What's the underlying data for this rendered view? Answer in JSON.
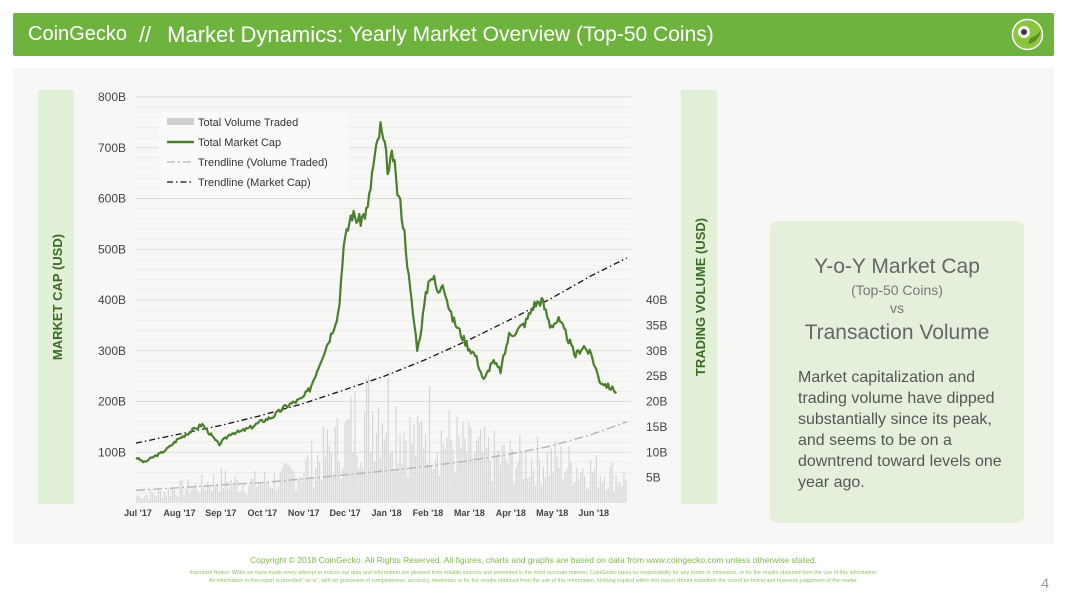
{
  "header": {
    "brand": "CoinGecko",
    "separator": "//",
    "title_strong": "Market Dynamics:",
    "title_light": "Yearly Market Overview (Top-50 Coins)",
    "logo_icon": "gecko-logo-icon"
  },
  "colors": {
    "brand_green": "#6fb33f",
    "market_cap_line": "#4a7f2c",
    "volume_bars": "#d6d6d6",
    "axis_band": "#e3f0d8",
    "axis_text": "#3a6b23"
  },
  "side_box": {
    "heading1": "Y-o-Y Market Cap",
    "subheading": "(Top-50 Coins)",
    "vs": "vs",
    "heading2": "Transaction Volume",
    "body": "Market capitalization and trading volume have dipped substantially since its peak, and seems to be on a downtrend toward levels one year ago."
  },
  "footer": {
    "copyright": "Copyright © 2018 CoinGecko. All Rights Reserved. All figures, charts and graphs are based on data from www.coingecko.com unless otherwise stated.",
    "note1": "Important Notice: While we have made every attempt to ensure our data and information are gleaned from reliable sources and presented in the most accurate manner, CoinGecko takes no responsibility for any errors or omissions, or for the results obtained from the use of this information.",
    "note2": "All information in this report is provided \"as is\", with no guarantee of completeness, accuracy, timeliness or for the results obtained from the use of this information. Nothing implied within this report should substitute the sound technical and business judgement of the reader.",
    "page_number": "4"
  },
  "chart_data": {
    "type": "line",
    "ylabel": "MARKET CAP (USD)",
    "ylabel_right": "TRADING VOLUME (USD)",
    "ylim": [
      0,
      800
    ],
    "ylim_right": [
      0,
      80
    ],
    "y_ticks": [
      {
        "value": 100,
        "label": "100B"
      },
      {
        "value": 200,
        "label": "200B"
      },
      {
        "value": 300,
        "label": "300B"
      },
      {
        "value": 400,
        "label": "400B"
      },
      {
        "value": 500,
        "label": "500B"
      },
      {
        "value": 600,
        "label": "600B"
      },
      {
        "value": 700,
        "label": "700B"
      },
      {
        "value": 800,
        "label": "800B"
      }
    ],
    "y_right_ticks": [
      {
        "value": 5,
        "label": "5B"
      },
      {
        "value": 10,
        "label": "10B"
      },
      {
        "value": 15,
        "label": "15B"
      },
      {
        "value": 20,
        "label": "20B"
      },
      {
        "value": 25,
        "label": "25B"
      },
      {
        "value": 30,
        "label": "30B"
      },
      {
        "value": 35,
        "label": "35B"
      },
      {
        "value": 40,
        "label": "40B"
      }
    ],
    "x_labels": [
      "Jul '17",
      "Aug '17",
      "Sep '17",
      "Oct '17",
      "Nov '17",
      "Dec '17",
      "Jan '18",
      "Feb '18",
      "Mar '18",
      "Apr '18",
      "May '18",
      "Jun '18"
    ],
    "legend_position": "top-left",
    "legend": [
      {
        "label": "Total Volume Traded",
        "style": "bar"
      },
      {
        "label": "Total Market Cap",
        "style": "line"
      },
      {
        "label": "Trendline (Volume Traded)",
        "style": "dash-dot-gray"
      },
      {
        "label": "Trendline (Market Cap)",
        "style": "dash-dot-black"
      }
    ],
    "market_cap_series": {
      "name": "Total Market Cap",
      "x_month_index": [
        0,
        0.2,
        0.4,
        0.6,
        0.8,
        1.0,
        1.3,
        1.6,
        2.0,
        2.3,
        2.5,
        2.8,
        3.0,
        3.3,
        3.6,
        3.8,
        4.0,
        4.2,
        4.5,
        4.7,
        4.9,
        5.0,
        5.2,
        5.4,
        5.6,
        5.7,
        5.9,
        6.0,
        6.1,
        6.2,
        6.3,
        6.4,
        6.5,
        6.6,
        6.8,
        7.0,
        7.1,
        7.2,
        7.3,
        7.4,
        7.6,
        7.8,
        8.0,
        8.2,
        8.4,
        8.6,
        8.8,
        9.0,
        9.2,
        9.4,
        9.6,
        9.8,
        10.0,
        10.2,
        10.4,
        10.6,
        10.8,
        11.0,
        11.2,
        11.4,
        11.6
      ],
      "values": [
        90,
        80,
        90,
        98,
        110,
        125,
        140,
        155,
        115,
        138,
        140,
        150,
        160,
        170,
        190,
        198,
        205,
        225,
        290,
        330,
        380,
        500,
        570,
        555,
        580,
        650,
        740,
        700,
        650,
        690,
        620,
        580,
        520,
        430,
        300,
        410,
        450,
        440,
        410,
        440,
        370,
        340,
        310,
        290,
        240,
        280,
        260,
        330,
        340,
        355,
        390,
        400,
        350,
        360,
        330,
        290,
        310,
        290,
        240,
        230,
        220
      ]
    },
    "trendline_market_cap": {
      "name": "Trendline (Market Cap)",
      "x_month_index": [
        0,
        1,
        2,
        3,
        4,
        5,
        6,
        7,
        8,
        9,
        10,
        11,
        11.85
      ],
      "values": [
        118,
        135,
        152,
        172,
        195,
        222,
        250,
        283,
        320,
        360,
        402,
        448,
        483
      ]
    },
    "trendline_volume": {
      "name": "Trendline (Volume Traded)",
      "x_month_index": [
        0,
        1,
        2,
        3,
        4,
        5,
        6,
        7,
        8,
        9,
        10,
        11,
        11.85
      ],
      "values": [
        2.5,
        3.0,
        3.5,
        4.0,
        4.7,
        5.5,
        6.3,
        7.2,
        8.3,
        9.6,
        11.2,
        13.5,
        16
      ]
    },
    "volume_series": {
      "name": "Total Volume Traded",
      "x_month_index": [
        0,
        0.5,
        1,
        1.5,
        2,
        2.5,
        3,
        3.5,
        4,
        4.5,
        5,
        5.3,
        5.6,
        5.9,
        6.2,
        6.5,
        6.8,
        7,
        7.3,
        7.6,
        8,
        8.5,
        9,
        9.5,
        10,
        10.5,
        11,
        11.5,
        11.85
      ],
      "values": [
        1.5,
        2,
        3,
        3.5,
        5,
        4,
        4.5,
        5,
        7,
        10,
        13,
        17,
        19,
        21,
        19,
        15,
        12,
        18,
        14,
        13,
        11,
        10,
        9,
        9,
        9,
        8,
        7,
        6,
        5
      ]
    }
  }
}
